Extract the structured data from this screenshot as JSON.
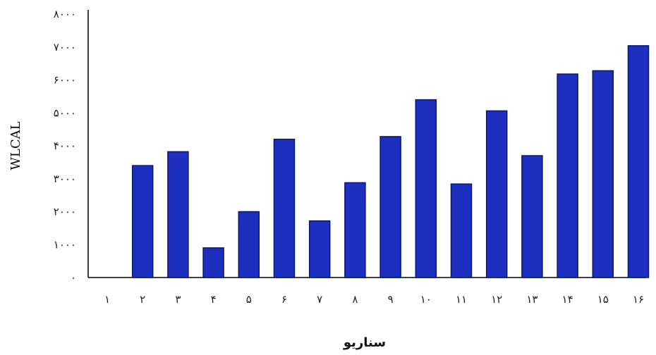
{
  "chart_data": {
    "type": "bar",
    "categories": [
      "۱",
      "۲",
      "۳",
      "۴",
      "۵",
      "۶",
      "۷",
      "۸",
      "۹",
      "۱۰",
      "۱۱",
      "۱۲",
      "۱۳",
      "۱۴",
      "۱۵",
      "۱۶"
    ],
    "values": [
      0,
      3400,
      3820,
      900,
      2000,
      4200,
      1720,
      2880,
      4280,
      5400,
      2840,
      5060,
      3700,
      6180,
      6280,
      7040
    ],
    "y_ticks": [
      0,
      1000,
      2000,
      3000,
      4000,
      5000,
      6000,
      7000,
      8000
    ],
    "y_tick_labels": [
      "۰",
      "۱۰۰۰",
      "۲۰۰۰",
      "۳۰۰۰",
      "۴۰۰۰",
      "۵۰۰۰",
      "۶۰۰۰",
      "۷۰۰۰",
      "۸۰۰۰"
    ],
    "ylim": [
      0,
      8000
    ],
    "xlabel": "سناریو",
    "ylabel": "WLCAL",
    "grid": false,
    "colors": {
      "bar": "#1c2fbf",
      "bar_edge": "#0c1670",
      "axis": "#000000"
    }
  }
}
